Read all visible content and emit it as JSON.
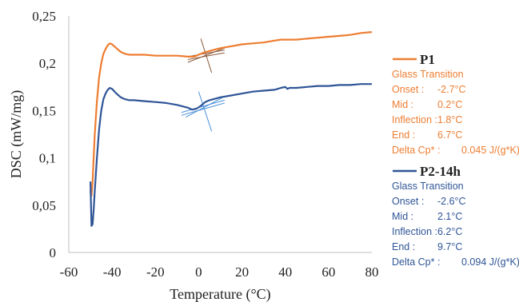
{
  "chart_data": {
    "type": "line",
    "xlabel": "Temperature (°C)",
    "ylabel": "DSC (mW/mg)",
    "xlim": [
      -60,
      80
    ],
    "ylim": [
      0,
      0.25
    ],
    "x_ticks": [
      "-60",
      "-40",
      "-20",
      "0",
      "20",
      "40",
      "60",
      "80"
    ],
    "y_ticks": [
      "0",
      "0,05",
      "0,1",
      "0,15",
      "0,2",
      "0,25"
    ],
    "grid": false,
    "legend_position": "right",
    "series": [
      {
        "name": "P1",
        "color": "#ED7D31",
        "x": [
          -50,
          -49.5,
          -49,
          -48.5,
          -48,
          -47,
          -46,
          -45,
          -44,
          -43,
          -42,
          -41,
          -40,
          -38,
          -36,
          -34,
          -32,
          -30,
          -25,
          -20,
          -15,
          -10,
          -5,
          -2,
          0,
          2,
          5,
          10,
          15,
          20,
          25,
          30,
          35,
          38,
          40,
          42,
          45,
          50,
          55,
          60,
          65,
          70,
          75,
          80
        ],
        "y": [
          0.065,
          0.06,
          0.075,
          0.1,
          0.125,
          0.16,
          0.185,
          0.2,
          0.21,
          0.215,
          0.219,
          0.221,
          0.22,
          0.216,
          0.212,
          0.21,
          0.209,
          0.209,
          0.209,
          0.208,
          0.208,
          0.208,
          0.207,
          0.207,
          0.209,
          0.211,
          0.213,
          0.216,
          0.218,
          0.22,
          0.221,
          0.222,
          0.224,
          0.225,
          0.225,
          0.225,
          0.225,
          0.226,
          0.227,
          0.228,
          0.229,
          0.23,
          0.232,
          0.233
        ]
      },
      {
        "name": "P2-14h",
        "color": "#2F5597",
        "x": [
          -50,
          -49.5,
          -49,
          -48.5,
          -48,
          -47,
          -46,
          -45,
          -44,
          -43,
          -42,
          -41,
          -40,
          -38,
          -36,
          -34,
          -32,
          -30,
          -25,
          -20,
          -15,
          -10,
          -5,
          -3,
          -1,
          1,
          3,
          5,
          10,
          15,
          20,
          25,
          30,
          35,
          38,
          40,
          41,
          42,
          45,
          50,
          55,
          60,
          65,
          70,
          75,
          80
        ],
        "y": [
          0.075,
          0.028,
          0.03,
          0.045,
          0.065,
          0.1,
          0.13,
          0.15,
          0.162,
          0.168,
          0.172,
          0.174,
          0.173,
          0.168,
          0.164,
          0.162,
          0.161,
          0.161,
          0.16,
          0.159,
          0.158,
          0.156,
          0.153,
          0.151,
          0.152,
          0.155,
          0.159,
          0.161,
          0.164,
          0.166,
          0.168,
          0.17,
          0.171,
          0.172,
          0.174,
          0.175,
          0.173,
          0.174,
          0.174,
          0.175,
          0.176,
          0.176,
          0.177,
          0.177,
          0.178,
          0.178
        ]
      }
    ],
    "annotations": [
      {
        "series": "P1",
        "color": "#ED7D31",
        "heading": "Glass Transition",
        "rows": [
          {
            "label": "Onset :",
            "value": "-2.7°C"
          },
          {
            "label": "Mid :",
            "value": "0.2°C"
          },
          {
            "label": "Inflection :",
            "value": "1.8°C"
          },
          {
            "label": "End :",
            "value": "6.7°C"
          },
          {
            "label": "Delta Cp* :",
            "value": "0.045 J/(g*K)"
          }
        ]
      },
      {
        "series": "P2-14h",
        "color": "#2F5597",
        "heading": "Glass Transition",
        "rows": [
          {
            "label": "Onset :",
            "value": "-2.6°C"
          },
          {
            "label": "Mid :",
            "value": "2.1°C"
          },
          {
            "label": "Inflection :",
            "value": "6.2°C"
          },
          {
            "label": "End :",
            "value": "9.7°C"
          },
          {
            "label": "Delta Cp* :",
            "value": "0.094 J/(g*K)"
          }
        ]
      }
    ]
  }
}
